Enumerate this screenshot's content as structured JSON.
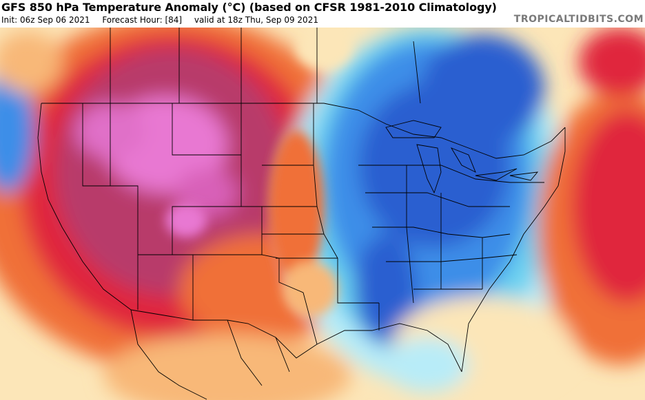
{
  "header": {
    "title": "GFS 850 hPa Temperature Anomaly (°C) (based on CFSR 1981-2010 Climatology)",
    "init": "Init: 06z Sep 06 2021",
    "forecast_hour": "Forecast Hour: [84]",
    "valid": "valid at 18z Thu, Sep 09 2021",
    "brand": "TROPICALTIDBITS.COM"
  },
  "colors": {
    "extreme_warm": "#e878d2",
    "very_warm": "#b83a6a",
    "warm": "#e0283c",
    "mild_warm": "#f07038",
    "slight_warm": "#f8b878",
    "near_normal_warm": "#fce6b8",
    "near_normal": "#ffffff",
    "near_normal_cool": "#b8ecf8",
    "slight_cool": "#6ad0f0",
    "cool": "#3e8ee8",
    "cold": "#2a5ed0",
    "borders": "#000000"
  }
}
